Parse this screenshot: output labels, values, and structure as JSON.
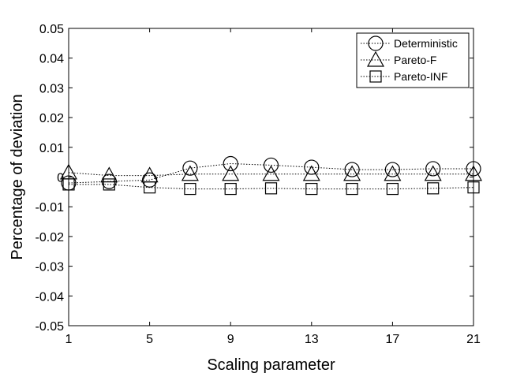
{
  "chart_data": {
    "type": "line",
    "title": "",
    "xlabel": "Scaling parameter",
    "ylabel": "Percentage of deviation",
    "x": [
      1,
      3,
      5,
      7,
      9,
      11,
      13,
      15,
      17,
      19,
      21
    ],
    "xlim": [
      1,
      21
    ],
    "ylim": [
      -0.05,
      0.05
    ],
    "x_ticks": [
      "1",
      "5",
      "9",
      "13",
      "17",
      "21"
    ],
    "y_ticks": [
      "-0.05",
      "-0.04",
      "-0.03",
      "-0.02",
      "-0.01",
      "0",
      "0.01",
      "0.02",
      "0.03",
      "0.04",
      "0.05"
    ],
    "grid": false,
    "legend_position": "top-right",
    "series": [
      {
        "name": "Deterministic",
        "marker": "circle",
        "line_style": "dotted",
        "color": "#000000",
        "values": [
          -0.002,
          -0.0015,
          -0.001,
          0.003,
          0.0045,
          0.004,
          0.0033,
          0.0025,
          0.0025,
          0.0028,
          0.0028
        ]
      },
      {
        "name": "Pareto-F",
        "marker": "triangle",
        "line_style": "dotted",
        "color": "#000000",
        "values": [
          0.0015,
          0.0005,
          0.0005,
          0.001,
          0.001,
          0.001,
          0.001,
          0.001,
          0.001,
          0.001,
          0.001
        ]
      },
      {
        "name": "Pareto-INF",
        "marker": "square",
        "line_style": "dotted",
        "color": "#000000",
        "values": [
          -0.0025,
          -0.0025,
          -0.0035,
          -0.004,
          -0.004,
          -0.0038,
          -0.004,
          -0.004,
          -0.004,
          -0.0038,
          -0.0035
        ]
      }
    ]
  }
}
